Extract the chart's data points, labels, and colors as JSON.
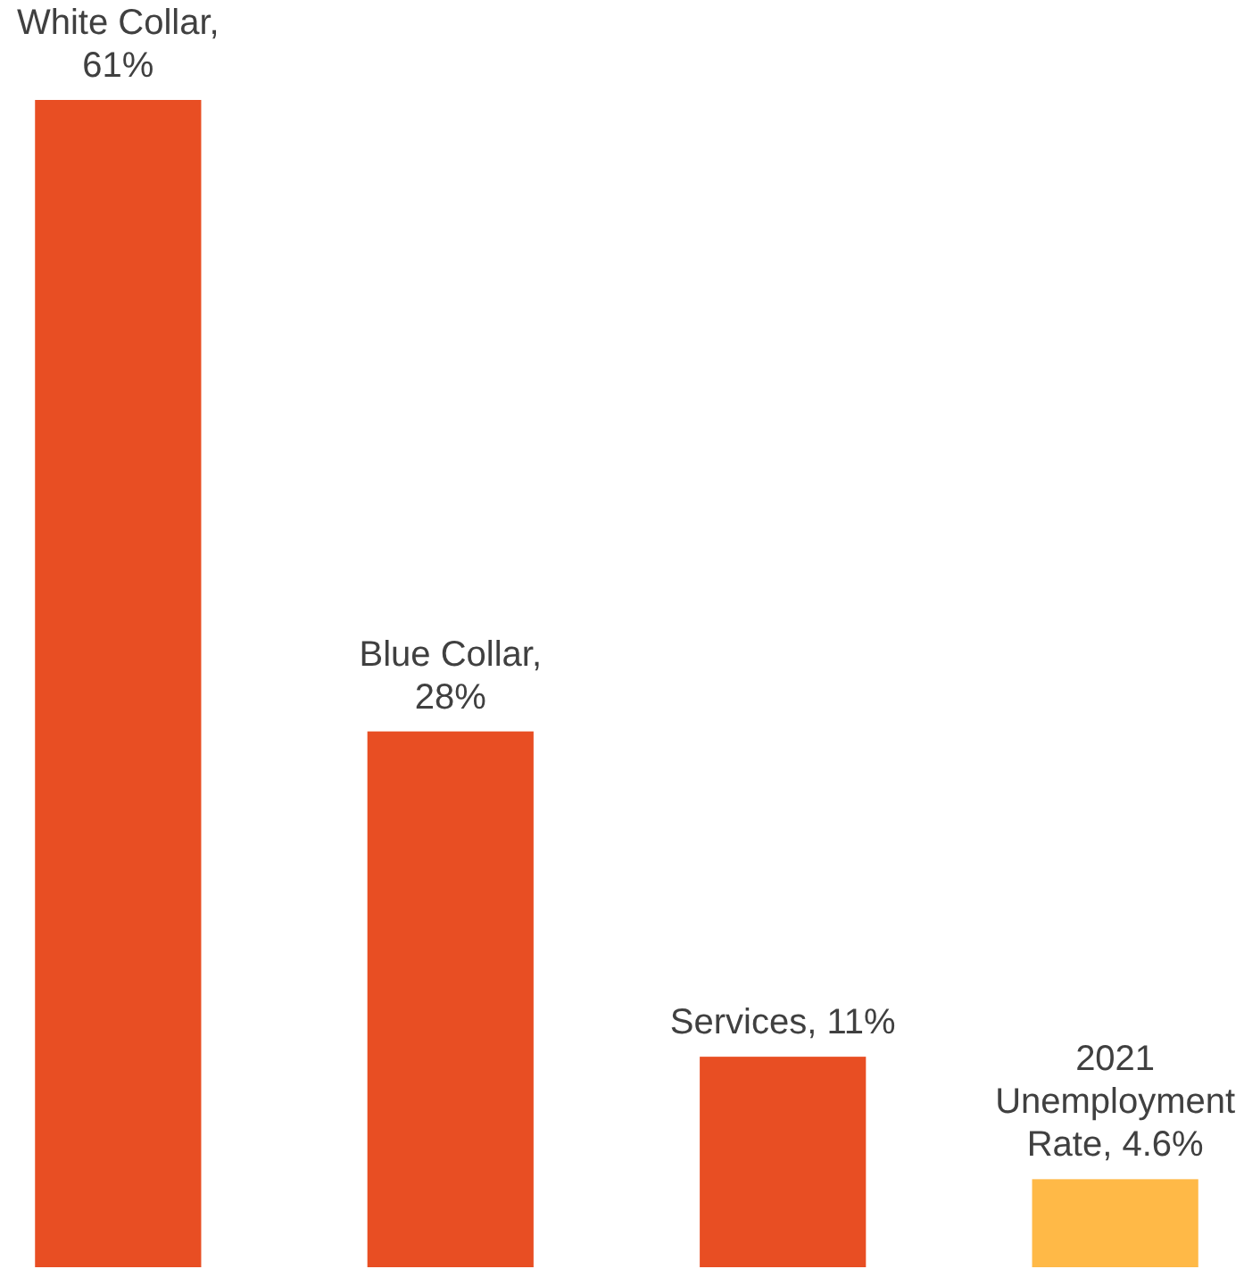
{
  "chart_data": {
    "type": "bar",
    "categories": [
      null,
      null,
      null,
      null
    ],
    "values": [
      61,
      28,
      11,
      4.6
    ],
    "colors": [
      "#e84e23",
      "#e84e23",
      "#e84e23",
      "#ffb947"
    ],
    "value_labels": [
      "White Collar, 61%",
      "Blue Collar, 28%",
      "Services, 11%",
      "2021 Unemployment Rate, 4.6%"
    ]
  }
}
